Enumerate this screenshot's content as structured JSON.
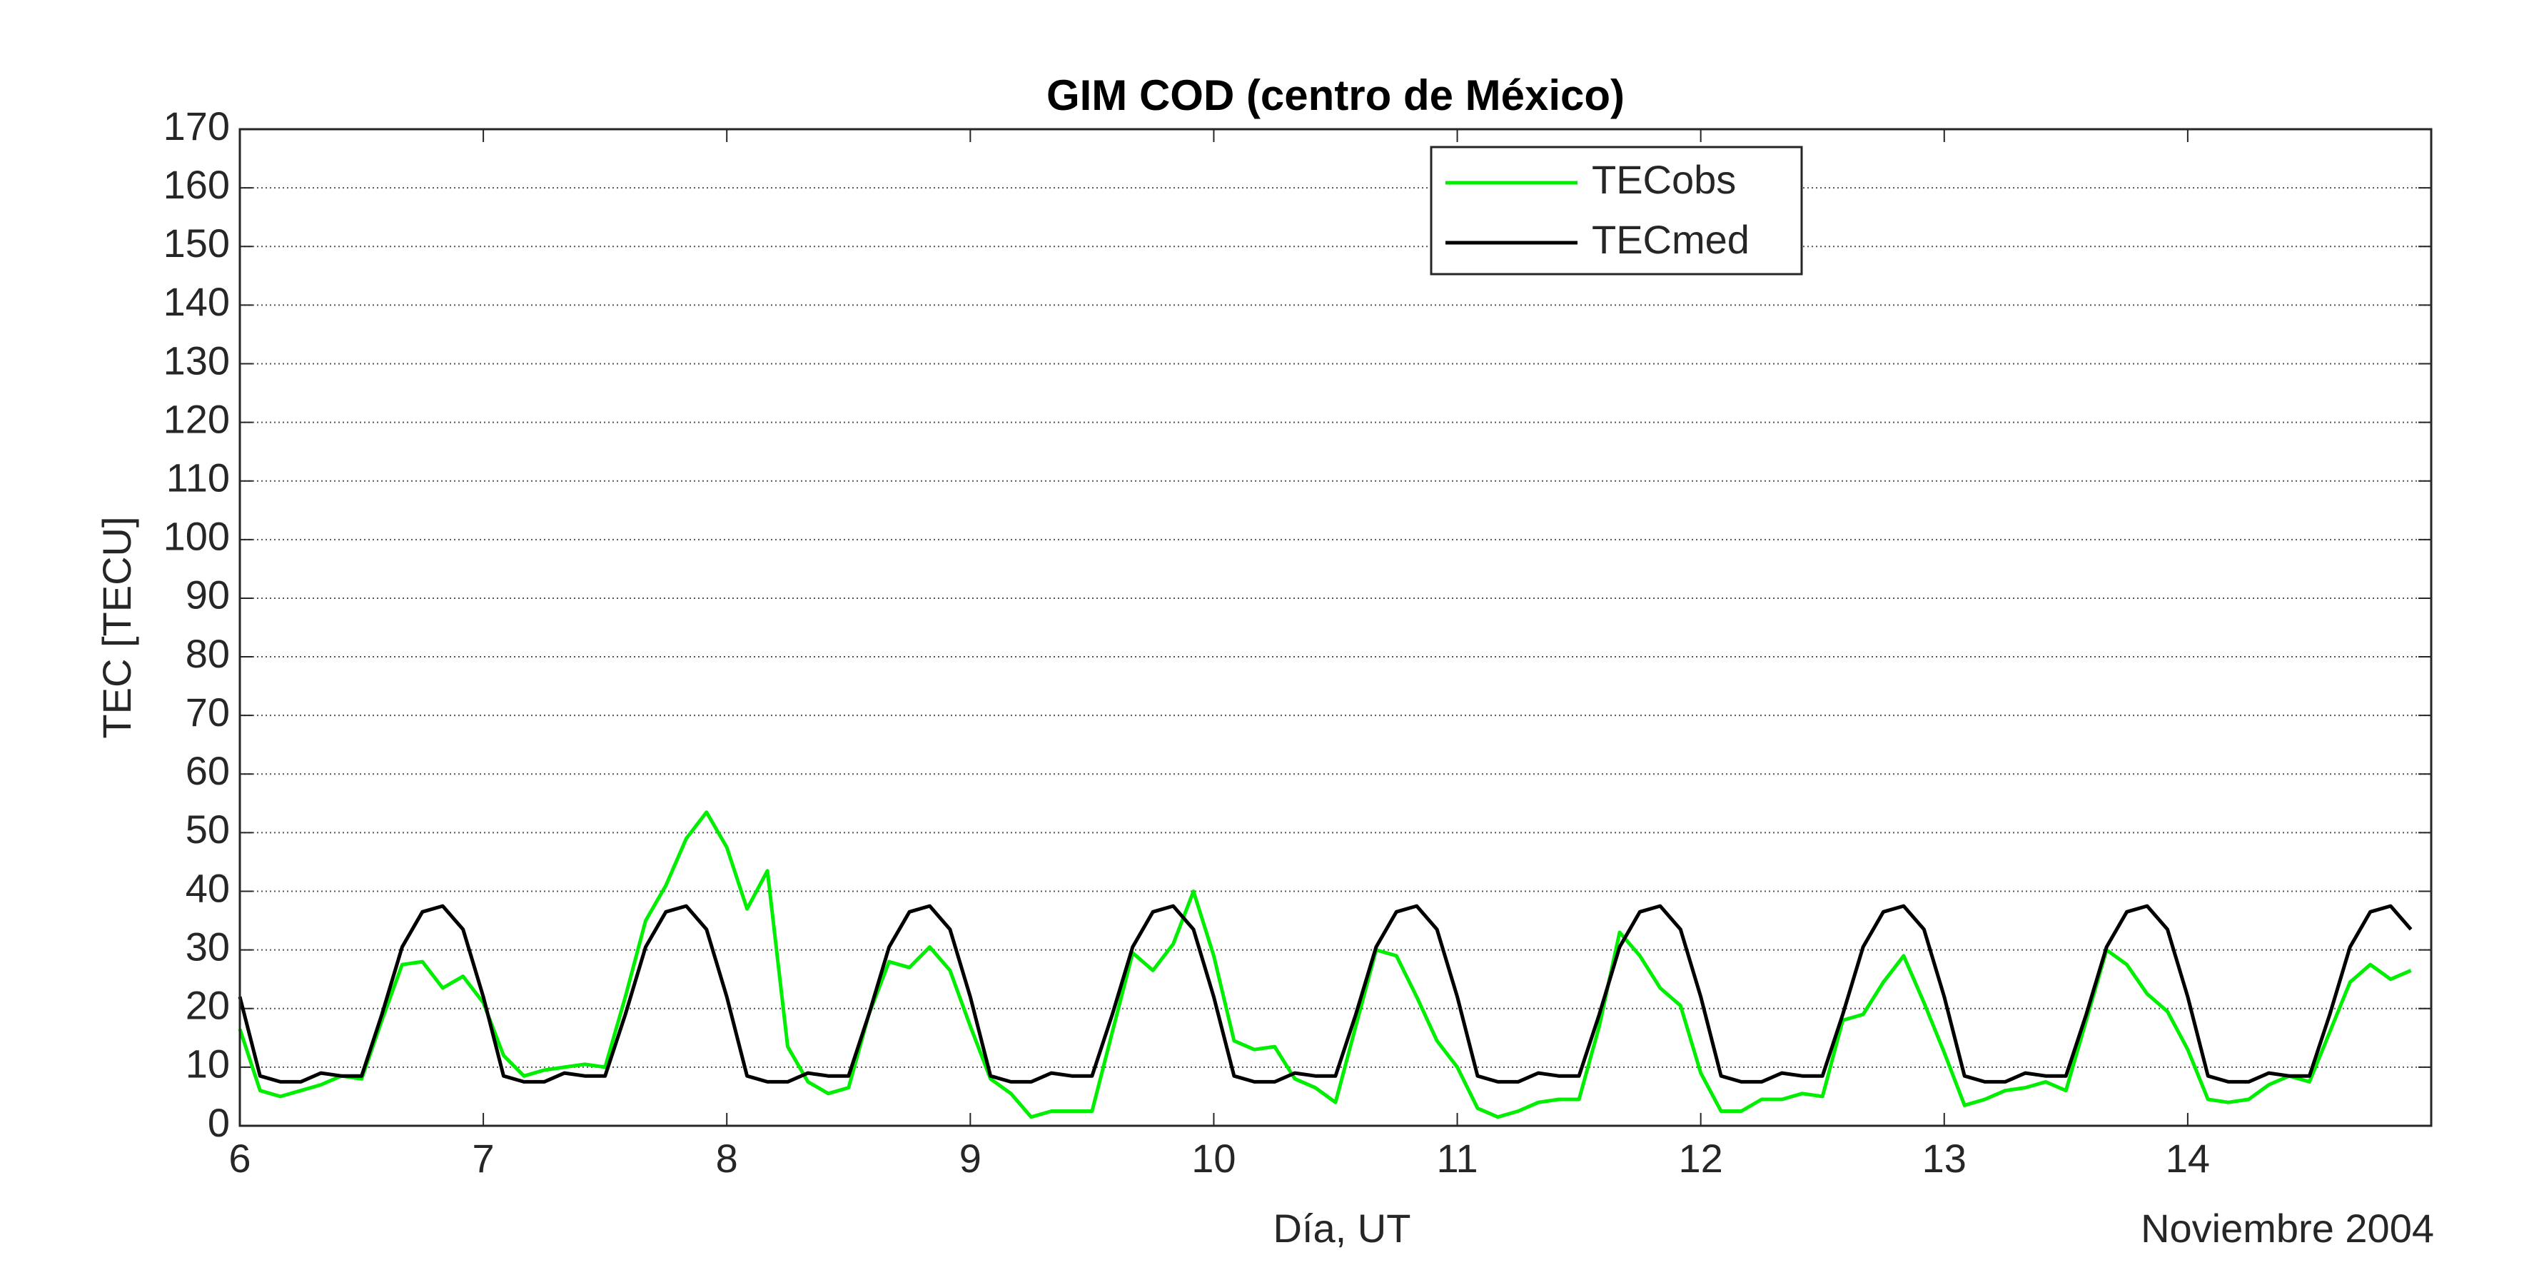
{
  "chart_data": {
    "type": "line",
    "title": "GIM COD (centro de México)",
    "x_label": "Día, UT",
    "y_label": "TEC [TECU]",
    "annotation": "Noviembre 2004",
    "x": [
      6,
      6.0833,
      6.1667,
      6.25,
      6.3333,
      6.4167,
      6.5,
      6.5833,
      6.6667,
      6.75,
      6.8333,
      6.9167,
      7,
      7.0833,
      7.1667,
      7.25,
      7.3333,
      7.4167,
      7.5,
      7.5833,
      7.6667,
      7.75,
      7.8333,
      7.9167,
      8,
      8.0833,
      8.1667,
      8.25,
      8.3333,
      8.4167,
      8.5,
      8.5833,
      8.6667,
      8.75,
      8.8333,
      8.9167,
      9,
      9.0833,
      9.1667,
      9.25,
      9.3333,
      9.4167,
      9.5,
      9.5833,
      9.6667,
      9.75,
      9.8333,
      9.9167,
      10,
      10.0833,
      10.1667,
      10.25,
      10.3333,
      10.4167,
      10.5,
      10.5833,
      10.6667,
      10.75,
      10.8333,
      10.9167,
      11,
      11.0833,
      11.1667,
      11.25,
      11.3333,
      11.4167,
      11.5,
      11.5833,
      11.6667,
      11.75,
      11.8333,
      11.9167,
      12,
      12.0833,
      12.1667,
      12.25,
      12.3333,
      12.4167,
      12.5,
      12.5833,
      12.6667,
      12.75,
      12.8333,
      12.9167,
      13,
      13.0833,
      13.1667,
      13.25,
      13.3333,
      13.4167,
      13.5,
      13.5833,
      13.6667,
      13.75,
      13.8333,
      13.9167,
      14,
      14.0833,
      14.1667,
      14.25,
      14.3333,
      14.4167,
      14.5,
      14.5833,
      14.6667,
      14.75,
      14.8333,
      14.9167
    ],
    "series": [
      {
        "name": "TECobs",
        "color": "#00ee00",
        "values": [
          16.5,
          6,
          5,
          6,
          7,
          8.5,
          8,
          18,
          27.5,
          28,
          23.5,
          25.5,
          21,
          12,
          8.5,
          9.5,
          10,
          10.5,
          10,
          22,
          35,
          41,
          49,
          53.5,
          47.5,
          37,
          43.5,
          13.5,
          7.5,
          5.5,
          6.5,
          19,
          28,
          27,
          30.5,
          26.5,
          17,
          8,
          5.5,
          1.5,
          2.5,
          2.5,
          2.5,
          16,
          29.5,
          26.5,
          31,
          40,
          29,
          14.5,
          13,
          13.5,
          8,
          6.5,
          4,
          17,
          30,
          29,
          22,
          14.5,
          10,
          3,
          1.5,
          2.5,
          4,
          4.5,
          4.5,
          17,
          33,
          29,
          23.5,
          20.5,
          9,
          2.5,
          2.5,
          4.5,
          4.5,
          5.5,
          5,
          18,
          19,
          24.5,
          29,
          21,
          12.5,
          3.5,
          4.5,
          6,
          6.5,
          7.5,
          6,
          18,
          30,
          27.5,
          22.5,
          19.5,
          13,
          4.5,
          4,
          4.5,
          7,
          8.5,
          7.5,
          16,
          24.5,
          27.5,
          25,
          26.5
        ]
      },
      {
        "name": "TECmed",
        "color": "#000000",
        "values": [
          22,
          8.5,
          7.5,
          7.5,
          9,
          8.5,
          8.5,
          19,
          30.5,
          36.5,
          37.5,
          33.5,
          22,
          8.5,
          7.5,
          7.5,
          9,
          8.5,
          8.5,
          19,
          30.5,
          36.5,
          37.5,
          33.5,
          22,
          8.5,
          7.5,
          7.5,
          9,
          8.5,
          8.5,
          19,
          30.5,
          36.5,
          37.5,
          33.5,
          22,
          8.5,
          7.5,
          7.5,
          9,
          8.5,
          8.5,
          19,
          30.5,
          36.5,
          37.5,
          33.5,
          22,
          8.5,
          7.5,
          7.5,
          9,
          8.5,
          8.5,
          19,
          30.5,
          36.5,
          37.5,
          33.5,
          22,
          8.5,
          7.5,
          7.5,
          9,
          8.5,
          8.5,
          19,
          30.5,
          36.5,
          37.5,
          33.5,
          22,
          8.5,
          7.5,
          7.5,
          9,
          8.5,
          8.5,
          19,
          30.5,
          36.5,
          37.5,
          33.5,
          22,
          8.5,
          7.5,
          7.5,
          9,
          8.5,
          8.5,
          19,
          30.5,
          36.5,
          37.5,
          33.5,
          22,
          8.5,
          7.5,
          7.5,
          9,
          8.5,
          8.5,
          19,
          30.5,
          36.5,
          37.5,
          33.5
        ]
      }
    ],
    "xlim": [
      6,
      15
    ],
    "xticks": [
      6,
      7,
      8,
      9,
      10,
      11,
      12,
      13,
      14
    ],
    "ylim": [
      0,
      170
    ],
    "yticks": [
      0,
      10,
      20,
      30,
      40,
      50,
      60,
      70,
      80,
      90,
      100,
      110,
      120,
      130,
      140,
      150,
      160,
      170
    ],
    "grid": true,
    "legend": "north"
  }
}
